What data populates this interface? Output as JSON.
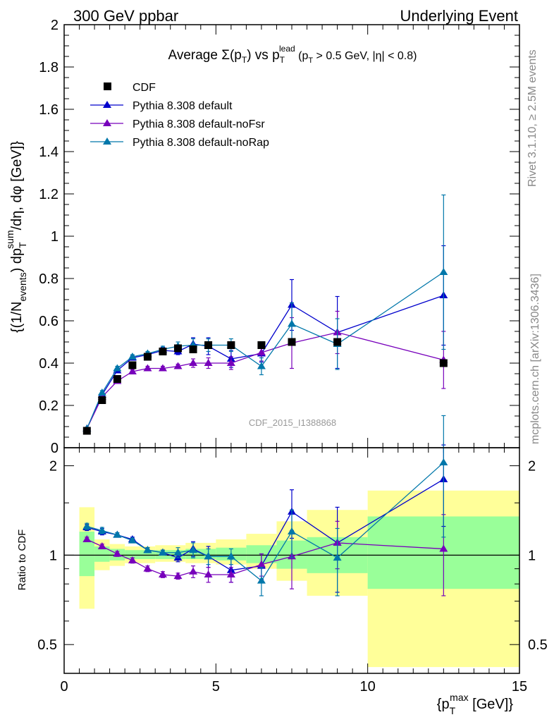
{
  "header": {
    "left": "300 GeV ppbar",
    "right": "Underlying Event"
  },
  "side_labels": {
    "rivet": "Rivet 3.1.10, ≥ 2.5M events",
    "mcplots": "mcplots.cern.ch [arXiv:1306.3436]"
  },
  "watermark": "CDF_2015_I1388868",
  "colors": {
    "CDF": "#000000",
    "default": "#0000cc",
    "noFsr": "#7700bb",
    "noRap": "#0077aa",
    "band_outer": "#ffff99",
    "band_inner": "#99ff99"
  },
  "chart_data": [
    {
      "type": "scatter",
      "title": "Average Σ(pT) vs pT^lead (pT > 0.5 GeV, |η| < 0.8)",
      "title_parts": {
        "a": "Average ",
        "b": "Σ(p",
        "c": "T",
        "d": ") vs p",
        "e": "T",
        "f": "lead",
        "g": " (p",
        "h": "T",
        "i": " > 0.5 GeV, |η| < 0.8)"
      },
      "ylabel": "{(1/N_events) dp_T^sum/dη, dφ [GeV]}",
      "ylabel_parts": {
        "a": "{(1/N",
        "b": "events",
        "c": ") dp",
        "d": "T",
        "e": "sum",
        "f": "/dη, dφ [GeV]}"
      },
      "xlim": [
        0,
        15
      ],
      "ylim": [
        0,
        2
      ],
      "yticks": [
        "0",
        "0.2",
        "0.4",
        "0.6",
        "0.8",
        "1",
        "1.2",
        "1.4",
        "1.6",
        "1.8",
        "2"
      ],
      "legend_position": "top-left",
      "series": [
        {
          "name": "CDF",
          "key": "CDF",
          "marker": "square",
          "x": [
            0.75,
            1.25,
            1.75,
            2.25,
            2.75,
            3.25,
            3.75,
            4.25,
            4.75,
            5.5,
            6.5,
            7.5,
            9,
            12.5
          ],
          "y": [
            0.08,
            0.225,
            0.325,
            0.39,
            0.43,
            0.455,
            0.47,
            0.465,
            0.485,
            0.485,
            0.485,
            0.5,
            0.5,
            0.4
          ]
        },
        {
          "name": "Pythia 8.308 default",
          "key": "default",
          "marker": "triangle",
          "x": [
            0.75,
            1.25,
            1.75,
            2.25,
            2.75,
            3.25,
            3.75,
            4.25,
            4.75,
            5.5,
            6.5,
            7.5,
            9,
            12.5
          ],
          "y": [
            0.09,
            0.25,
            0.365,
            0.425,
            0.44,
            0.46,
            0.455,
            0.49,
            0.48,
            0.42,
            0.445,
            0.675,
            0.545,
            0.72
          ],
          "err": [
            0.005,
            0.01,
            0.01,
            0.01,
            0.01,
            0.015,
            0.015,
            0.03,
            0.04,
            0.04,
            0.04,
            0.12,
            0.17,
            0.235
          ]
        },
        {
          "name": "Pythia 8.308 default-noFsr",
          "key": "noFsr",
          "marker": "triangle",
          "x": [
            0.75,
            1.25,
            1.75,
            2.25,
            2.75,
            3.25,
            3.75,
            4.25,
            4.75,
            5.5,
            6.5,
            7.5,
            9,
            12.5
          ],
          "y": [
            0.09,
            0.24,
            0.315,
            0.36,
            0.375,
            0.375,
            0.385,
            0.4,
            0.4,
            0.4,
            0.45,
            0.495,
            0.545,
            0.415
          ],
          "err": [
            0.005,
            0.01,
            0.01,
            0.01,
            0.01,
            0.01,
            0.01,
            0.02,
            0.025,
            0.03,
            0.04,
            0.12,
            0.1,
            0.135
          ]
        },
        {
          "name": "Pythia 8.308 default-noRap",
          "key": "noRap",
          "marker": "triangle",
          "x": [
            0.75,
            1.25,
            1.75,
            2.25,
            2.75,
            3.25,
            3.75,
            4.25,
            4.75,
            5.5,
            6.5,
            7.5,
            9,
            12.5
          ],
          "y": [
            0.09,
            0.26,
            0.375,
            0.43,
            0.445,
            0.465,
            0.48,
            0.485,
            0.485,
            0.485,
            0.385,
            0.585,
            0.49,
            0.83
          ],
          "err": [
            0.005,
            0.01,
            0.01,
            0.01,
            0.01,
            0.015,
            0.02,
            0.03,
            0.03,
            0.03,
            0.04,
            0.1,
            0.12,
            0.365
          ]
        }
      ]
    },
    {
      "type": "scatter",
      "ylabel": "Ratio to CDF",
      "xlabel": "{p_T^max [GeV]}",
      "xlabel_parts": {
        "a": "{p",
        "b": "T",
        "c": "max",
        "d": " [GeV]}"
      },
      "xlim": [
        0,
        15
      ],
      "ylim": [
        0.4,
        2.3
      ],
      "xticks": [
        "0",
        "5",
        "10",
        "15"
      ],
      "yticks": [
        "0.5",
        "1",
        "2"
      ],
      "yscale": "log",
      "reference_line": 1,
      "bands": [
        {
          "x0": 0.5,
          "x1": 1.0,
          "outer": [
            0.66,
            1.45
          ],
          "inner": [
            0.85,
            1.2
          ]
        },
        {
          "x0": 1.0,
          "x1": 1.5,
          "outer": [
            0.89,
            1.13
          ],
          "inner": [
            0.95,
            1.07
          ]
        },
        {
          "x0": 1.5,
          "x1": 2.0,
          "outer": [
            0.92,
            1.09
          ],
          "inner": [
            0.96,
            1.05
          ]
        },
        {
          "x0": 2.0,
          "x1": 3.0,
          "outer": [
            0.94,
            1.07
          ],
          "inner": [
            0.97,
            1.04
          ]
        },
        {
          "x0": 3.0,
          "x1": 4.0,
          "outer": [
            0.95,
            1.08
          ],
          "inner": [
            0.97,
            1.04
          ]
        },
        {
          "x0": 4.0,
          "x1": 5.0,
          "outer": [
            0.94,
            1.1
          ],
          "inner": [
            0.97,
            1.05
          ]
        },
        {
          "x0": 5.0,
          "x1": 6.0,
          "outer": [
            0.93,
            1.13
          ],
          "inner": [
            0.96,
            1.06
          ]
        },
        {
          "x0": 6.0,
          "x1": 7.0,
          "outer": [
            0.9,
            1.18
          ],
          "inner": [
            0.94,
            1.08
          ]
        },
        {
          "x0": 7.0,
          "x1": 8.0,
          "outer": [
            0.82,
            1.3
          ],
          "inner": [
            0.9,
            1.12
          ]
        },
        {
          "x0": 8.0,
          "x1": 10.0,
          "outer": [
            0.73,
            1.42
          ],
          "inner": [
            0.87,
            1.15
          ]
        },
        {
          "x0": 10.0,
          "x1": 15.0,
          "outer": [
            0.42,
            1.65
          ],
          "inner": [
            0.77,
            1.35
          ]
        }
      ],
      "series": [
        {
          "key": "default",
          "x": [
            0.75,
            1.25,
            1.75,
            2.25,
            2.75,
            3.25,
            3.75,
            4.25,
            4.75,
            5.5,
            6.5,
            7.5,
            9,
            12.5
          ],
          "y": [
            1.24,
            1.2,
            1.17,
            1.13,
            1.04,
            1.02,
            0.98,
            1.05,
            0.99,
            0.89,
            0.92,
            1.4,
            1.1,
            1.8
          ],
          "err": [
            0.03,
            0.03,
            0.02,
            0.02,
            0.02,
            0.02,
            0.03,
            0.06,
            0.08,
            0.08,
            0.09,
            0.26,
            0.35,
            0.55
          ]
        },
        {
          "key": "noFsr",
          "x": [
            0.75,
            1.25,
            1.75,
            2.25,
            2.75,
            3.25,
            3.75,
            4.25,
            4.75,
            5.5,
            6.5,
            7.5,
            9,
            12.5
          ],
          "y": [
            1.13,
            1.07,
            1.01,
            0.96,
            0.9,
            0.86,
            0.85,
            0.88,
            0.86,
            0.86,
            0.93,
            0.99,
            1.1,
            1.05
          ],
          "err": [
            0.02,
            0.02,
            0.02,
            0.02,
            0.02,
            0.02,
            0.02,
            0.04,
            0.05,
            0.05,
            0.08,
            0.22,
            0.2,
            0.32
          ]
        },
        {
          "key": "noRap",
          "x": [
            0.75,
            1.25,
            1.75,
            2.25,
            2.75,
            3.25,
            3.75,
            4.25,
            4.75,
            5.5,
            6.5,
            7.5,
            9,
            12.5
          ],
          "y": [
            1.25,
            1.21,
            1.17,
            1.12,
            1.04,
            1.02,
            1.02,
            1.04,
            0.99,
            0.99,
            0.82,
            1.2,
            0.98,
            2.05
          ],
          "err": [
            0.03,
            0.03,
            0.02,
            0.02,
            0.02,
            0.02,
            0.04,
            0.06,
            0.06,
            0.06,
            0.09,
            0.22,
            0.25,
            0.9
          ]
        }
      ]
    }
  ]
}
